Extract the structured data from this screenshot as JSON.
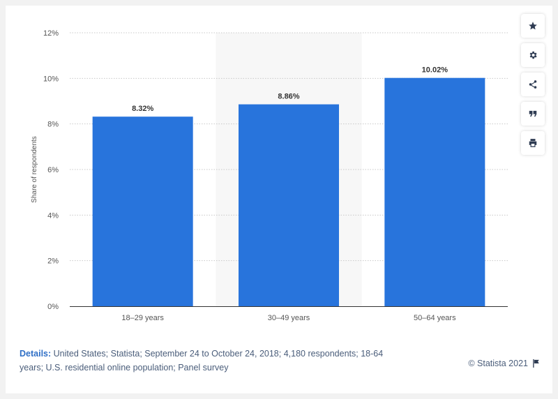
{
  "chart_data": {
    "type": "bar",
    "categories": [
      "18-29 years",
      "30-49 years",
      "50-64 years"
    ],
    "values": [
      8.32,
      8.86,
      10.02
    ],
    "data_labels": [
      "8.32%",
      "8.86%",
      "10.02%"
    ],
    "ylabel": "Share of respondents",
    "ylim": [
      0,
      12
    ],
    "yticks": [
      "0%",
      "2%",
      "4%",
      "6%",
      "8%",
      "10%",
      "12%"
    ],
    "highlighted_category": "30-49 years",
    "bar_color": "#2874dc",
    "grid": true
  },
  "footer": {
    "details_label": "Details:",
    "details_text": "United States; Statista; September 24 to October 24, 2018; 4,180 respondents; 18-64 years; U.S. residential online population; Panel survey",
    "credit": "© Statista 2021"
  },
  "toolbar": {
    "icons": [
      "star-icon",
      "gear-icon",
      "share-icon",
      "quote-icon",
      "print-icon"
    ]
  }
}
